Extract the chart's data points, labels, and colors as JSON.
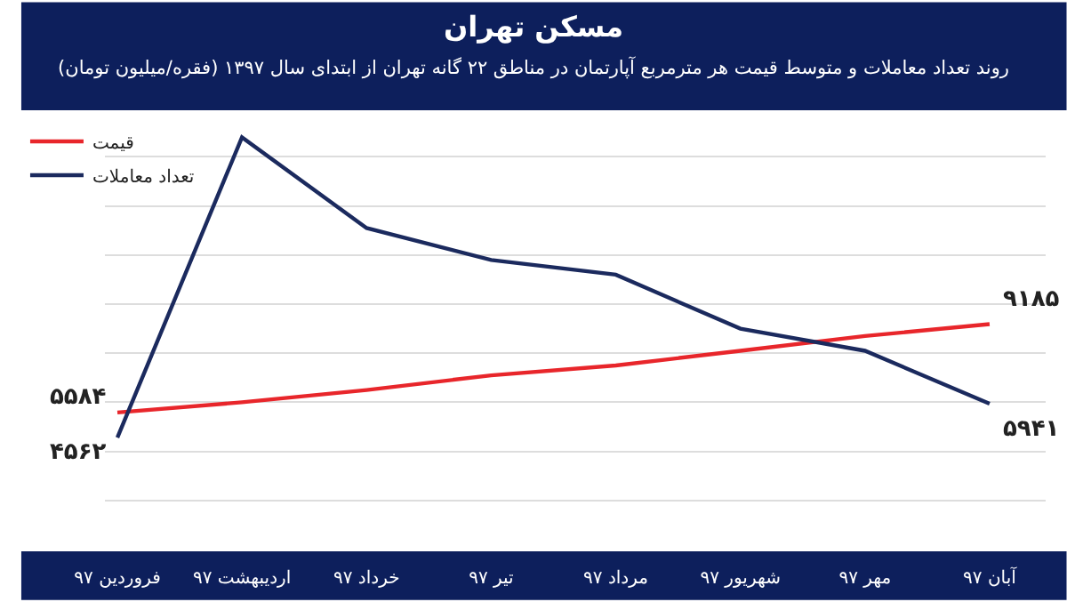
{
  "chart_data": {
    "type": "line",
    "title": "مسکن تهران",
    "subtitle": "روند تعداد معاملات و متوسط قیمت هر مترمربع آپارتمان در مناطق ۲۲ گانه تهران از ابتدای سال ۱۳۹۷ (فقره/میلیون تومان)",
    "categories": [
      "فروردین ۹۷",
      "اردیبهشت ۹۷",
      "خرداد ۹۷",
      "تیر ۹۷",
      "مرداد ۹۷",
      "شهریور ۹۷",
      "مهر ۹۷",
      "آبان ۹۷"
    ],
    "series": [
      {
        "name": "قیمت",
        "color": "#e8262b",
        "values": [
          5584,
          6000,
          6500,
          7100,
          7500,
          8100,
          8700,
          9185
        ],
        "value_labels": [
          "۵۵۸۴",
          null,
          null,
          null,
          null,
          null,
          null,
          "۹۱۸۵"
        ]
      },
      {
        "name": "تعداد معاملات",
        "color": "#1b2a5e",
        "values": [
          4562,
          16800,
          13100,
          11800,
          11200,
          9000,
          8100,
          5941
        ],
        "value_labels": [
          "۴۵۶۲",
          null,
          null,
          null,
          null,
          null,
          null,
          "۵۹۴۱"
        ]
      }
    ],
    "yticks": [
      {
        "value": 2000,
        "label": null
      },
      {
        "value": 4000,
        "label": null
      },
      {
        "value": 6000,
        "label": null
      },
      {
        "value": 8000,
        "label": null
      },
      {
        "value": 10000,
        "label": null
      },
      {
        "value": 12000,
        "label": null
      },
      {
        "value": 14000,
        "label": null
      },
      {
        "value": 16000,
        "label": null
      }
    ],
    "tick_labels": "x",
    "grid": "y",
    "legend": "top left",
    "marker": "none",
    "line_style": "solid"
  }
}
